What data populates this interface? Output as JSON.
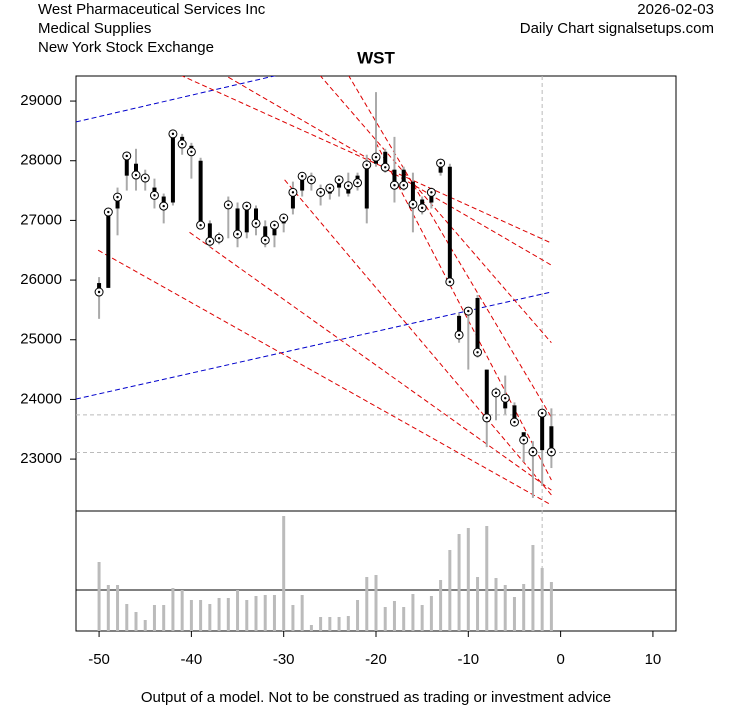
{
  "chart_data": {
    "type": "ohlc",
    "title": "WST",
    "header_left": [
      "West Pharmaceutical Services Inc",
      "Medical Supplies",
      "New York Stock Exchange"
    ],
    "header_right": [
      "2026-02-03",
      "Daily Chart signalsetups.com"
    ],
    "footer": "Output of a model. Not to be construed as trading or investment advice",
    "x": [
      -50,
      -49,
      -48,
      -47,
      -46,
      -45,
      -44,
      -43,
      -42,
      -41,
      -40,
      -39,
      -38,
      -37,
      -36,
      -35,
      -34,
      -33,
      -32,
      -31,
      -30,
      -29,
      -28,
      -27,
      -26,
      -25,
      -24,
      -23,
      -22,
      -21,
      -20,
      -19,
      -18,
      -17,
      -16,
      -15,
      -14,
      -13,
      -12,
      -11,
      -10,
      -9,
      -8,
      -7,
      -6,
      -5,
      -4,
      -3,
      -2,
      -1
    ],
    "open": [
      25950,
      25870,
      27200,
      27750,
      27950,
      27700,
      27550,
      27400,
      27300,
      28400,
      28250,
      28000,
      26950,
      26700,
      27250,
      27200,
      26800,
      27200,
      26900,
      26750,
      26950,
      27200,
      27500,
      27700,
      27500,
      27450,
      27550,
      27450,
      27750,
      27200,
      27950,
      28150,
      27850,
      27850,
      27650,
      27350,
      27300,
      27800,
      27900,
      25400,
      25500,
      25700,
      24500,
      24150,
      23850,
      23900,
      23450,
      23200,
      23150,
      23550
    ],
    "high": [
      26050,
      27200,
      27550,
      28150,
      28200,
      27850,
      27700,
      27450,
      28500,
      28450,
      28300,
      28050,
      27000,
      26800,
      27400,
      27300,
      27300,
      27250,
      27000,
      27000,
      27100,
      27650,
      27800,
      27800,
      27600,
      27600,
      27750,
      27800,
      27800,
      28100,
      29150,
      28200,
      28400,
      27900,
      27800,
      27400,
      27550,
      28000,
      27950,
      25450,
      25550,
      25750,
      24500,
      24200,
      24400,
      23950,
      23450,
      23300,
      23800,
      23850
    ],
    "low": [
      25350,
      25870,
      26750,
      27500,
      27500,
      27500,
      27200,
      26950,
      27250,
      28100,
      27700,
      26900,
      26550,
      26600,
      26700,
      26550,
      26700,
      26750,
      26550,
      26550,
      26800,
      27100,
      27400,
      27500,
      27250,
      27350,
      27400,
      27400,
      27500,
      26950,
      27900,
      27800,
      27300,
      27500,
      26800,
      27100,
      27200,
      27750,
      25900,
      24950,
      24500,
      24700,
      23200,
      23650,
      23750,
      23550,
      22950,
      22350,
      22550,
      22850
    ],
    "close": [
      25800,
      27140,
      27390,
      28080,
      27760,
      27710,
      27420,
      27240,
      28450,
      28280,
      28150,
      26920,
      26650,
      26700,
      27260,
      26770,
      27240,
      26950,
      26670,
      26920,
      27040,
      27470,
      27740,
      27680,
      27470,
      27540,
      27680,
      27580,
      27630,
      27930,
      28060,
      27890,
      27590,
      27590,
      27270,
      27210,
      27470,
      27960,
      25970,
      25080,
      25480,
      24790,
      23690,
      24110,
      24020,
      23620,
      23320,
      23120,
      23770,
      23120
    ],
    "volume": [
      69,
      46,
      46,
      27,
      19,
      11,
      26,
      26,
      43,
      41,
      31,
      31,
      27,
      33,
      33,
      41,
      31,
      35,
      36,
      36,
      115,
      26,
      36,
      6,
      14,
      14,
      14,
      15,
      31,
      54,
      56,
      24,
      30,
      24,
      37,
      26,
      35,
      51,
      81,
      97,
      103,
      54,
      105,
      53,
      46,
      34,
      47,
      86,
      63,
      49
    ],
    "vlim": [
      0,
      120
    ],
    "xlim": [
      -52.5,
      12.5
    ],
    "ylim": [
      22130,
      29420
    ],
    "xticks": [
      -50,
      -40,
      -30,
      -20,
      -10,
      0,
      10
    ],
    "yticks": [
      23000,
      24000,
      25000,
      26000,
      27000,
      28000,
      29000
    ],
    "trendlines": [
      {
        "color": "#0000cc",
        "x": [
          -52.5,
          -30.6
        ],
        "y": [
          28650,
          29436
        ]
      },
      {
        "color": "#0000cc",
        "x": [
          -52.5,
          -1
        ],
        "y": [
          24006,
          25800
        ]
      },
      {
        "color": "#dd0000",
        "x": [
          -41.2,
          -1
        ],
        "y": [
          29436,
          26620
        ]
      },
      {
        "color": "#dd0000",
        "x": [
          -36,
          -1
        ],
        "y": [
          29400,
          26250
        ]
      },
      {
        "color": "#dd0000",
        "x": [
          -26.1,
          -1
        ],
        "y": [
          29436,
          24950
        ]
      },
      {
        "color": "#dd0000",
        "x": [
          -23,
          -1
        ],
        "y": [
          29436,
          23700
        ]
      },
      {
        "color": "#dd0000",
        "x": [
          -50.1,
          -1
        ],
        "y": [
          26500,
          22230
        ]
      },
      {
        "color": "#dd0000",
        "x": [
          -40.2,
          -1
        ],
        "y": [
          26800,
          22480
        ]
      },
      {
        "color": "#dd0000",
        "x": [
          -29.9,
          -1
        ],
        "y": [
          27680,
          22400
        ]
      },
      {
        "color": "#dd0000",
        "x": [
          -20,
          -1
        ],
        "y": [
          28300,
          22650
        ]
      }
    ],
    "hlines": [
      23740,
      23110
    ],
    "vline": -2
  }
}
